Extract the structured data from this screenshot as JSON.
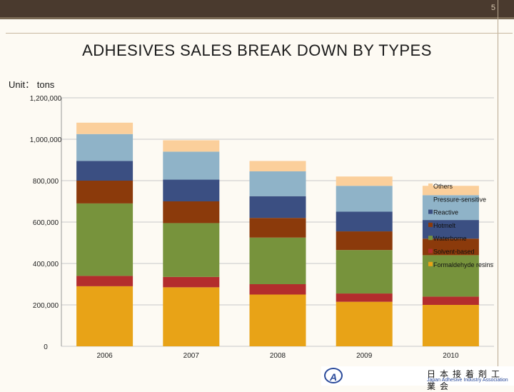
{
  "slide": {
    "number": "5",
    "unit_label": "Unit： tons"
  },
  "chart_data": {
    "type": "bar",
    "stacked": true,
    "title": "ADHESIVES SALES BREAK DOWN BY TYPES",
    "xlabel": "",
    "ylabel": "",
    "ylim": [
      0,
      1200000
    ],
    "y_ticks": [
      0,
      200000,
      400000,
      600000,
      800000,
      1000000,
      1200000
    ],
    "y_tick_labels": [
      "0",
      "200,000",
      "400,000",
      "600,000",
      "800,000",
      "1,000,000",
      "1,200,000"
    ],
    "grid": true,
    "legend_position": "right",
    "categories": [
      "2006",
      "2007",
      "2008",
      "2009",
      "2010"
    ],
    "series": [
      {
        "name": "Formaldehyde resins",
        "color": "#e8a317",
        "values": [
          290000,
          285000,
          250000,
          215000,
          200000
        ]
      },
      {
        "name": "Solvent-based",
        "color": "#b32d2d",
        "values": [
          50000,
          50000,
          50000,
          40000,
          40000
        ]
      },
      {
        "name": "Waterborne",
        "color": "#77933c",
        "values": [
          350000,
          260000,
          225000,
          210000,
          200000
        ]
      },
      {
        "name": "Hotmelt",
        "color": "#8b3a0b",
        "values": [
          110000,
          105000,
          95000,
          90000,
          80000
        ]
      },
      {
        "name": "Reactive",
        "color": "#3b4f82",
        "values": [
          95000,
          105000,
          105000,
          95000,
          90000
        ]
      },
      {
        "name": "Pressure-sensitive",
        "color": "#8fb3c8",
        "values": [
          130000,
          135000,
          120000,
          125000,
          120000
        ]
      },
      {
        "name": "Others",
        "color": "#fbcf9b",
        "values": [
          55000,
          55000,
          50000,
          45000,
          45000
        ]
      }
    ],
    "legend_order": [
      "Others",
      "Pressure-sensitive",
      "Reactive",
      "Hotmelt",
      "Waterborne",
      "Solvent-based",
      "Formaldehyde resins"
    ]
  },
  "logo": {
    "mark": "A",
    "name_jp": "日本接着剤工業会",
    "name_en": "Japan Adhesive Industry Association"
  },
  "colors": {
    "header": "#4a3a2e",
    "background": "#fdfaf3"
  }
}
